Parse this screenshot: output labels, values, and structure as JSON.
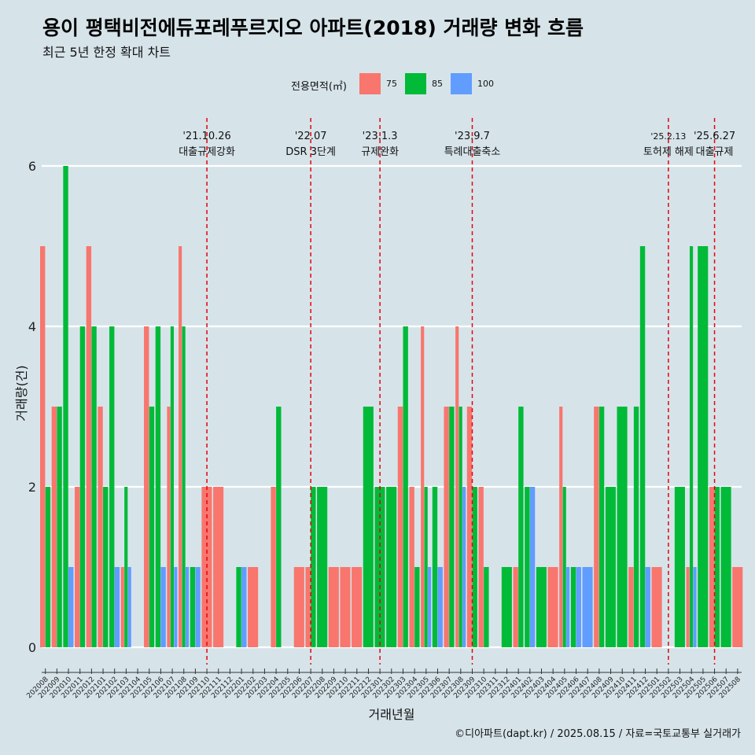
{
  "title": "용이 평택비전에듀포레푸르지오 아파트(2018) 거래량 변화 흐름",
  "subtitle": "최근 5년 한정 확대 차트",
  "caption": "©디아파트(dapt.kr) / 2025.08.15 / 자료=국토교통부 실거래가",
  "legend": {
    "title": "전용면적(㎡)",
    "items": [
      {
        "label": "75",
        "color": "#f8766d"
      },
      {
        "label": "85",
        "color": "#00ba38"
      },
      {
        "label": "100",
        "color": "#619cff"
      }
    ]
  },
  "chart_data": {
    "type": "bar",
    "title": "용이 평택비전에듀포레푸르지오 아파트(2018) 거래량 변화 흐름",
    "xlabel": "거래년월",
    "ylabel": "거래량(건)",
    "ylim": [
      0,
      6
    ],
    "yticks": [
      0,
      2,
      4,
      6
    ],
    "grid": true,
    "legend_position": "top",
    "categories": [
      "202008",
      "202009",
      "202010",
      "202011",
      "202012",
      "202101",
      "202102",
      "202103",
      "202104",
      "202105",
      "202106",
      "202107",
      "202108",
      "202109",
      "202110",
      "202111",
      "202112",
      "202201",
      "202202",
      "202203",
      "202204",
      "202205",
      "202206",
      "202207",
      "202208",
      "202209",
      "202210",
      "202211",
      "202212",
      "202301",
      "202302",
      "202303",
      "202304",
      "202305",
      "202306",
      "202307",
      "202308",
      "202309",
      "202310",
      "202311",
      "202312",
      "202401",
      "202402",
      "202403",
      "202404",
      "202405",
      "202406",
      "202407",
      "202408",
      "202409",
      "202410",
      "202411",
      "202412",
      "202501",
      "202502",
      "202503",
      "202504",
      "202505",
      "202506",
      "202507",
      "202508"
    ],
    "series": [
      {
        "name": "75",
        "color": "#f8766d",
        "values": [
          5,
          3,
          0,
          2,
          5,
          3,
          0,
          1,
          0,
          4,
          0,
          3,
          5,
          0,
          2,
          2,
          0,
          0,
          1,
          0,
          2,
          0,
          1,
          1,
          0,
          1,
          1,
          1,
          0,
          0,
          0,
          3,
          2,
          4,
          0,
          3,
          4,
          3,
          2,
          0,
          0,
          1,
          0,
          0,
          1,
          3,
          0,
          0,
          3,
          0,
          0,
          1,
          0,
          1,
          0,
          0,
          1,
          0,
          2,
          0,
          1
        ]
      },
      {
        "name": "85",
        "color": "#00ba38",
        "values": [
          2,
          3,
          6,
          4,
          4,
          2,
          4,
          2,
          0,
          3,
          4,
          4,
          4,
          1,
          0,
          0,
          0,
          1,
          0,
          0,
          3,
          0,
          0,
          2,
          2,
          0,
          0,
          0,
          3,
          2,
          2,
          4,
          1,
          2,
          2,
          3,
          3,
          2,
          1,
          0,
          1,
          3,
          2,
          1,
          0,
          2,
          1,
          0,
          3,
          2,
          3,
          3,
          5,
          0,
          0,
          2,
          5,
          5,
          2,
          2,
          0
        ]
      },
      {
        "name": "100",
        "color": "#619cff",
        "values": [
          0,
          0,
          1,
          0,
          0,
          0,
          1,
          1,
          0,
          0,
          1,
          1,
          1,
          1,
          0,
          0,
          0,
          1,
          0,
          0,
          0,
          0,
          0,
          0,
          0,
          0,
          0,
          0,
          0,
          0,
          0,
          0,
          0,
          1,
          1,
          0,
          2,
          0,
          0,
          0,
          0,
          0,
          2,
          0,
          0,
          1,
          1,
          1,
          0,
          0,
          0,
          0,
          1,
          0,
          0,
          0,
          1,
          0,
          0,
          0,
          0
        ]
      }
    ],
    "annotations": [
      {
        "x": "202110",
        "date": "'21.10.26",
        "text": "대출규제강화"
      },
      {
        "x": "202207",
        "date": "'22.07",
        "text": "DSR 3단계"
      },
      {
        "x": "202301",
        "date": "'23.1.3",
        "text": "규제완화"
      },
      {
        "x": "202309",
        "date": "'23.9.7",
        "text": "특례대출축소"
      },
      {
        "x": "202502",
        "date": "'25.2.13",
        "text": "토허제 해제"
      },
      {
        "x": "202506",
        "date": "'25.6.27",
        "text": "대출규제"
      }
    ]
  }
}
